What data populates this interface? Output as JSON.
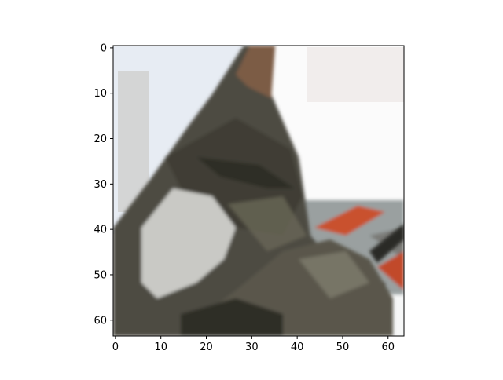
{
  "chart_data": {
    "type": "heatmap",
    "subject": "pixelated photo of a tabby cat close-up",
    "xlim": [
      -0.5,
      63.5
    ],
    "ylim": [
      63.5,
      -0.5
    ],
    "x_ticks": [
      0,
      10,
      20,
      30,
      40,
      50,
      60
    ],
    "y_ticks": [
      0,
      10,
      20,
      30,
      40,
      50,
      60
    ],
    "x_tick_labels": [
      "0",
      "10",
      "20",
      "30",
      "40",
      "50",
      "60"
    ],
    "y_tick_labels": [
      "0",
      "10",
      "20",
      "30",
      "40",
      "50",
      "60"
    ],
    "title": "",
    "xlabel": "",
    "ylabel": "",
    "grid": false
  },
  "colors": {
    "window_light": "#eef3fb",
    "background_white": "#fbfbfb",
    "fur_dark": "#3b3b33",
    "fur_mid": "#5d5b4f",
    "fur_light": "#cfcfcc",
    "ear_inner": "#7a5a43",
    "cushion_orange": "#c9512e",
    "cushion_gray": "#a3a6a5"
  }
}
